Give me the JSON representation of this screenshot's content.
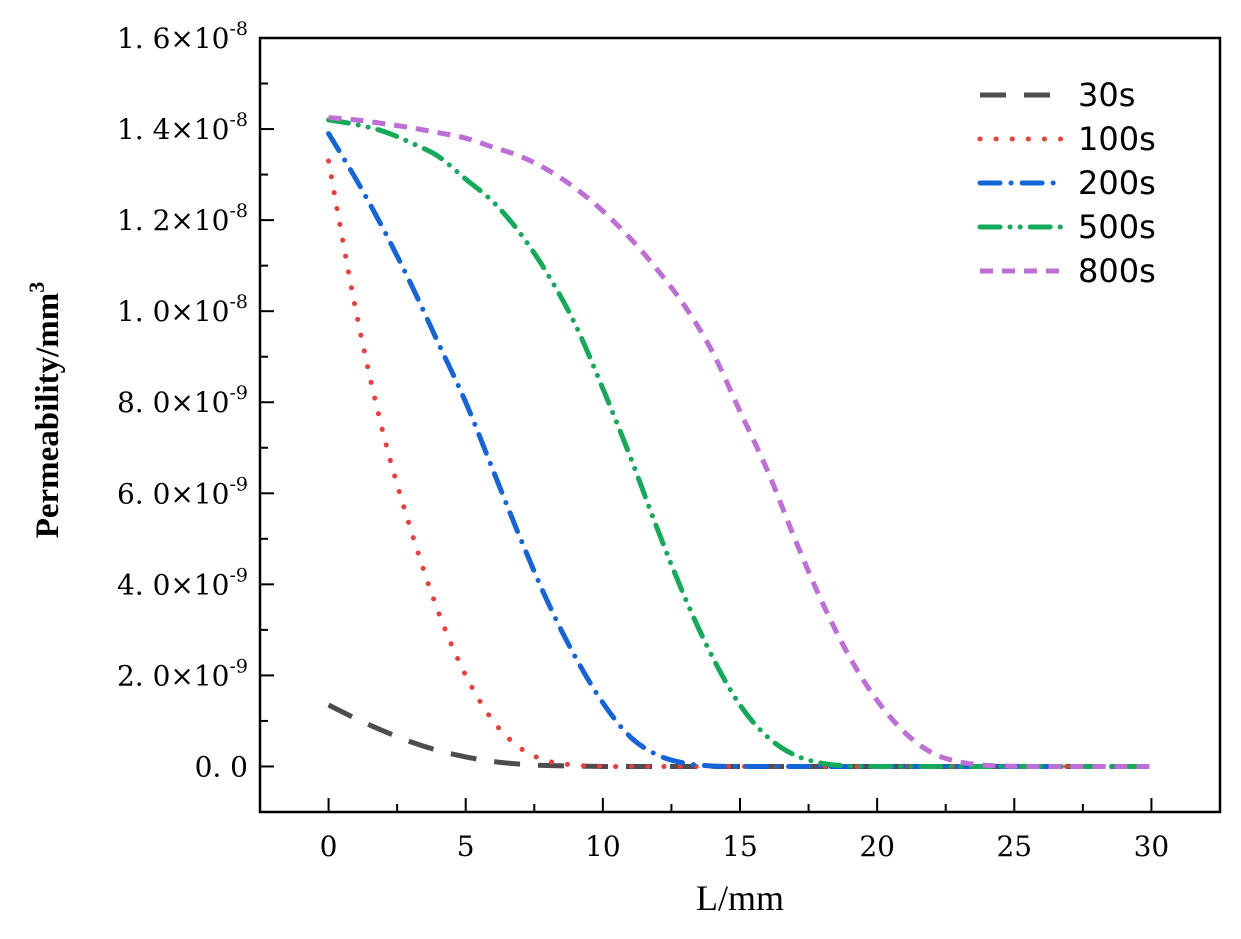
{
  "chart_data": {
    "type": "line",
    "title": "",
    "xlabel": "L/mm",
    "ylabel": {
      "base": "Permeability/mm",
      "sup": "3"
    },
    "xlim": [
      -2.5,
      32.5
    ],
    "ylim": [
      -1e-09,
      1.6e-08
    ],
    "x_ticks": [
      {
        "value": 0,
        "label": "0"
      },
      {
        "value": 5,
        "label": "5"
      },
      {
        "value": 10,
        "label": "10"
      },
      {
        "value": 15,
        "label": "15"
      },
      {
        "value": 20,
        "label": "20"
      },
      {
        "value": 25,
        "label": "25"
      },
      {
        "value": 30,
        "label": "30"
      }
    ],
    "y_ticks": [
      {
        "value": 0,
        "mant": "0. 0",
        "exp": ""
      },
      {
        "value": 2e-09,
        "mant": "2. 0×10",
        "exp": "-9"
      },
      {
        "value": 4e-09,
        "mant": "4. 0×10",
        "exp": "-9"
      },
      {
        "value": 6e-09,
        "mant": "6. 0×10",
        "exp": "-9"
      },
      {
        "value": 8e-09,
        "mant": "8. 0×10",
        "exp": "-9"
      },
      {
        "value": 1e-08,
        "mant": "1. 0×10",
        "exp": "-8"
      },
      {
        "value": 1.2e-08,
        "mant": "1. 2×10",
        "exp": "-8"
      },
      {
        "value": 1.4e-08,
        "mant": "1. 4×10",
        "exp": "-8"
      },
      {
        "value": 1.6e-08,
        "mant": "1. 6×10",
        "exp": "-8"
      }
    ],
    "legend_position": "top-right",
    "x": [
      0,
      1,
      2,
      3,
      4,
      5,
      6,
      7,
      8,
      9,
      10,
      11,
      12,
      13,
      14,
      15,
      16,
      17,
      18,
      19,
      20,
      21,
      22,
      23,
      24,
      25,
      26,
      27,
      28,
      29,
      30
    ],
    "series": [
      {
        "name": "30s",
        "color": "#4d4d4d",
        "dash": "dash",
        "values": [
          1.35e-09,
          1.05e-09,
          7.8e-10,
          5.4e-10,
          3.5e-10,
          2.1e-10,
          1.1e-10,
          5e-11,
          2e-11,
          1e-11,
          0,
          0,
          0,
          0,
          0,
          0,
          0,
          0,
          0,
          0,
          0,
          0,
          0,
          0,
          0,
          0,
          0,
          0,
          0,
          0,
          0
        ]
      },
      {
        "name": "100s",
        "color": "#f03c3c",
        "dash": "dot",
        "values": [
          1.33e-08,
          1e-08,
          7.3e-09,
          5.2e-09,
          3.4e-09,
          2e-09,
          1e-09,
          4e-10,
          1.2e-10,
          3e-11,
          0,
          0,
          0,
          0,
          0,
          0,
          0,
          0,
          0,
          0,
          0,
          0,
          0,
          0,
          0,
          0,
          0,
          0,
          0,
          0,
          0
        ]
      },
      {
        "name": "200s",
        "color": "#1464dc",
        "dash": "dashdot",
        "values": [
          1.39e-08,
          1.29e-08,
          1.18e-08,
          1.06e-08,
          9.3e-09,
          8e-09,
          6.5e-09,
          5e-09,
          3.6e-09,
          2.4e-09,
          1.4e-09,
          6.5e-10,
          2.5e-10,
          7e-11,
          1e-11,
          0,
          0,
          0,
          0,
          0,
          0,
          0,
          0,
          0,
          0,
          0,
          0,
          0,
          0,
          0,
          0
        ]
      },
      {
        "name": "500s",
        "color": "#14aa5a",
        "dash": "dashdotdot",
        "values": [
          1.42e-08,
          1.41e-08,
          1.395e-08,
          1.37e-08,
          1.34e-08,
          1.29e-08,
          1.24e-08,
          1.17e-08,
          1.08e-08,
          9.7e-09,
          8.3e-09,
          6.8e-09,
          5.2e-09,
          3.7e-09,
          2.4e-09,
          1.35e-09,
          6.5e-10,
          2.5e-10,
          7e-11,
          1e-11,
          0,
          0,
          0,
          0,
          0,
          0,
          0,
          0,
          0,
          0,
          0
        ]
      },
      {
        "name": "800s",
        "color": "#be6ed7",
        "dash": "shortdash",
        "values": [
          1.425e-08,
          1.42e-08,
          1.412e-08,
          1.403e-08,
          1.392e-08,
          1.38e-08,
          1.36e-08,
          1.34e-08,
          1.31e-08,
          1.27e-08,
          1.22e-08,
          1.16e-08,
          1.09e-08,
          1.01e-08,
          9.1e-09,
          7.8e-09,
          6.5e-09,
          5e-09,
          3.6e-09,
          2.4e-09,
          1.45e-09,
          7.5e-10,
          3e-10,
          1e-10,
          2.5e-11,
          5e-12,
          0,
          0,
          0,
          0,
          0
        ]
      }
    ]
  }
}
